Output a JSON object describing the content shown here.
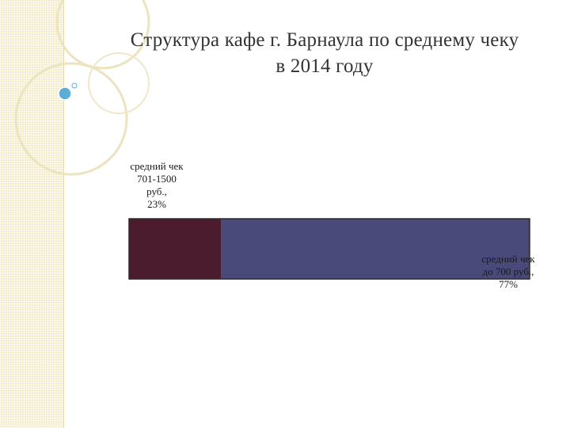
{
  "slide": {
    "title_line1": "Структура кафе г. Барнаула по среднему чеку",
    "title_line2": "в 2014 году"
  },
  "chart_data": {
    "type": "bar",
    "orientation": "horizontal-stacked",
    "title": "Структура кафе г. Барнаула по среднему чеку в 2014 году",
    "xlim": [
      0,
      100
    ],
    "unit": "%",
    "grid": false,
    "legend": "none",
    "series": [
      {
        "label_lines": [
          "средний чек",
          "701-1500",
          "руб.,",
          "23%"
        ],
        "value": 23,
        "color": "#4b1b2e"
      },
      {
        "label_lines": [
          "средний чек",
          "до 700 руб.,",
          "77%"
        ],
        "value": 77,
        "color": "#4a4a7a"
      }
    ]
  },
  "colors": {
    "accent_strip": "#f3eccb",
    "decor_circle": "#e8dfb8",
    "bubble": "#5aaed8",
    "bar_border": "#2a2a2a"
  }
}
